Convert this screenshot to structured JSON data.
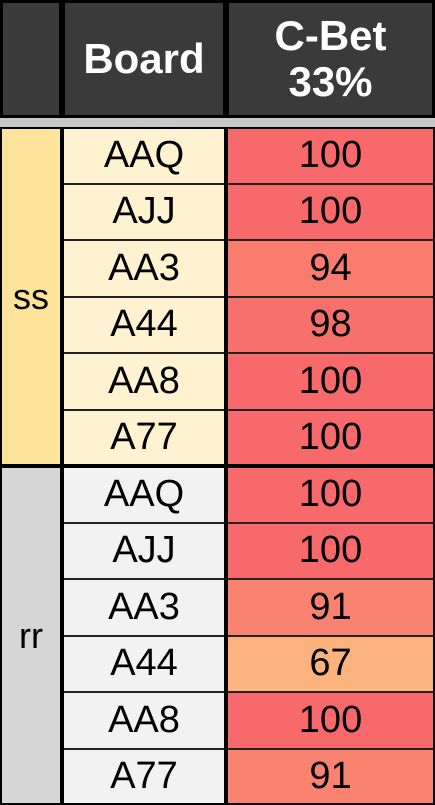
{
  "header": {
    "corner": "",
    "board": "Board",
    "cbet": "C-Bet\n33%"
  },
  "groups": [
    {
      "label": "ss",
      "label_bg": "#fde49a",
      "board_bg": "#fef2d0",
      "rows": [
        {
          "board": "AAQ",
          "value": "100",
          "color": "#f8696b"
        },
        {
          "board": "AJJ",
          "value": "100",
          "color": "#f8696b"
        },
        {
          "board": "AA3",
          "value": "94",
          "color": "#f97c6e"
        },
        {
          "board": "A44",
          "value": "98",
          "color": "#f8706c"
        },
        {
          "board": "AA8",
          "value": "100",
          "color": "#f8696b"
        },
        {
          "board": "A77",
          "value": "100",
          "color": "#f8696b"
        }
      ]
    },
    {
      "label": "rr",
      "label_bg": "#d6d6d6",
      "board_bg": "#f2f2f2",
      "rows": [
        {
          "board": "AAQ",
          "value": "100",
          "color": "#f8696b"
        },
        {
          "board": "AJJ",
          "value": "100",
          "color": "#f8696b"
        },
        {
          "board": "AA3",
          "value": "91",
          "color": "#f98370"
        },
        {
          "board": "A44",
          "value": "67",
          "color": "#fbb27c"
        },
        {
          "board": "AA8",
          "value": "100",
          "color": "#f8696b"
        },
        {
          "board": "A77",
          "value": "91",
          "color": "#f98370"
        }
      ]
    }
  ]
}
